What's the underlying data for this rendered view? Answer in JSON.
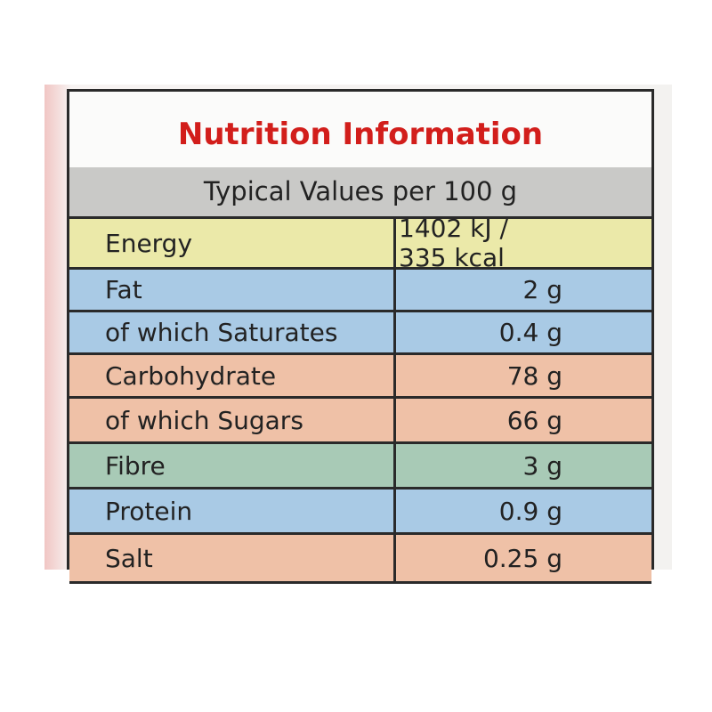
{
  "header": {
    "title": "Nutrition Information",
    "subtitle": "Typical Values per 100 g"
  },
  "table": {
    "rows": [
      [
        "Energy",
        "1402 kJ / 335 kcal"
      ],
      [
        "Fat",
        "2 g"
      ],
      [
        "of which Saturates",
        "0.4 g"
      ],
      [
        "Carbohydrate",
        "78 g"
      ],
      [
        "of which Sugars",
        "66 g"
      ],
      [
        "Fibre",
        "3 g"
      ],
      [
        "Protein",
        "0.9 g"
      ],
      [
        "Salt",
        "0.25 g"
      ]
    ]
  }
}
